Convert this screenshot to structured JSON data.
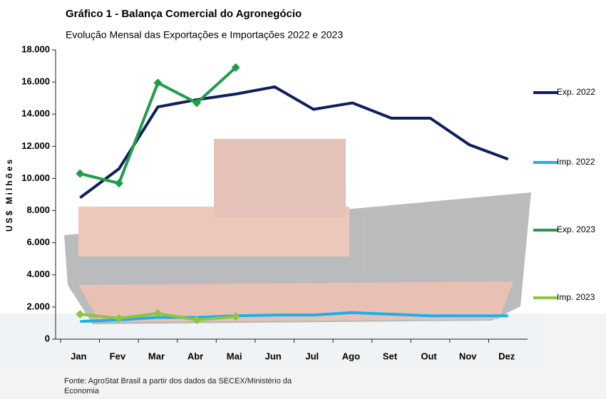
{
  "chart_data": {
    "type": "line",
    "title": "Gráfico 1 - Balança Comercial do Agronegócio",
    "subtitle": "Evolução Mensal das Exportações e Importações 2022 e 2023",
    "y_label": "US$ Milhões",
    "source": "Fonte: AgroStat Brasil a partir dos dados da SECEX/Ministério da Economia",
    "categories": [
      "Jan",
      "Fev",
      "Mar",
      "Abr",
      "Mai",
      "Jun",
      "Jul",
      "Ago",
      "Set",
      "Out",
      "Nov",
      "Dez"
    ],
    "ylim": [
      0,
      18000
    ],
    "yticks": [
      0,
      {
        "value": 2000,
        "label": "2.000"
      },
      {
        "value": 4000,
        "label": "4.000"
      },
      {
        "value": 6000,
        "label": "6.000"
      },
      {
        "value": 8000,
        "label": "8.000"
      },
      {
        "value": 10000,
        "label": "10.000"
      },
      {
        "value": 12000,
        "label": "12.000"
      },
      {
        "value": 14000,
        "label": "14.000"
      },
      {
        "value": 16000,
        "label": "16.000"
      },
      {
        "value": 18000,
        "label": "18.000"
      }
    ],
    "legend": "right",
    "series": [
      {
        "name": "Exp. 2022",
        "color": "#0d1f5c",
        "marker": false,
        "values": [
          8800,
          10600,
          14450,
          14900,
          15250,
          15700,
          14300,
          14700,
          13750,
          13750,
          12100,
          11200
        ]
      },
      {
        "name": "Imp. 2022",
        "color": "#1ab0ea",
        "marker": false,
        "values": [
          1100,
          1200,
          1350,
          1350,
          1450,
          1500,
          1500,
          1650,
          1550,
          1450,
          1450,
          1450
        ]
      },
      {
        "name": "Exp. 2023",
        "color": "#1e9e48",
        "marker": true,
        "values": [
          10300,
          9700,
          15950,
          14700,
          16900,
          null,
          null,
          null,
          null,
          null,
          null,
          null
        ]
      },
      {
        "name": "Imp. 2023",
        "color": "#8cc63f",
        "marker": true,
        "values": [
          1550,
          1300,
          1600,
          1200,
          1400,
          null,
          null,
          null,
          null,
          null,
          null,
          null
        ]
      }
    ]
  }
}
